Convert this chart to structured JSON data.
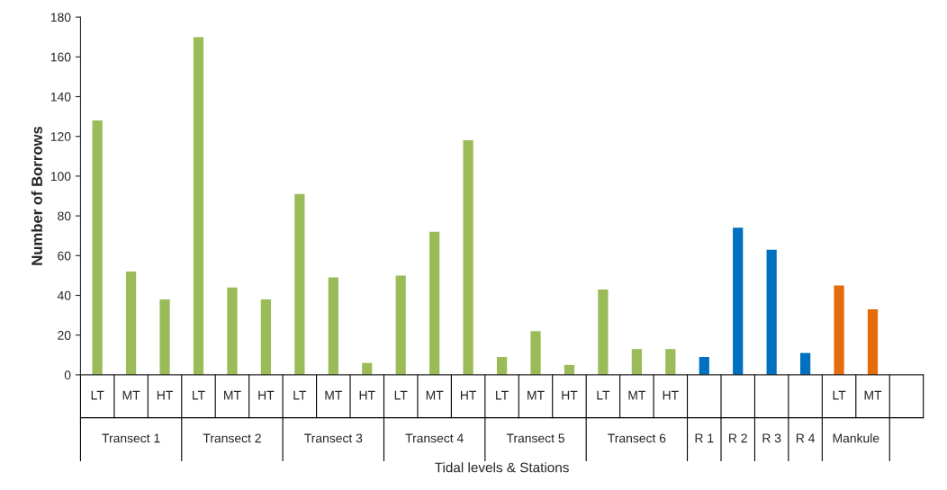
{
  "chart_data": {
    "type": "bar",
    "categories": [
      "LT",
      "MT",
      "HT",
      "LT",
      "MT",
      "HT",
      "LT",
      "MT",
      "HT",
      "LT",
      "MT",
      "HT",
      "LT",
      "MT",
      "HT",
      "LT",
      "MT",
      "HT",
      null,
      null,
      null,
      null,
      "LT",
      "MT",
      null
    ],
    "values": [
      128,
      52,
      38,
      170,
      44,
      38,
      91,
      49,
      6,
      50,
      72,
      118,
      9,
      22,
      5,
      43,
      13,
      13,
      9,
      74,
      63,
      11,
      45,
      33,
      null
    ],
    "colors": [
      "#9bbb59",
      "#9bbb59",
      "#9bbb59",
      "#9bbb59",
      "#9bbb59",
      "#9bbb59",
      "#9bbb59",
      "#9bbb59",
      "#9bbb59",
      "#9bbb59",
      "#9bbb59",
      "#9bbb59",
      "#9bbb59",
      "#9bbb59",
      "#9bbb59",
      "#9bbb59",
      "#9bbb59",
      "#9bbb59",
      "#0070c0",
      "#0070c0",
      "#0070c0",
      "#0070c0",
      "#e46c0a",
      "#e46c0a",
      "#9bbb59"
    ],
    "annotations": [
      "Transect 1",
      "Transect 2",
      "Transect 3",
      "Transect 4",
      "Transect 5",
      "Transect 6",
      "R 1",
      "R 2",
      "R 3",
      "R 4",
      "Mankule"
    ],
    "xlabel": "Tidal levels & Stations",
    "ylabel": "Number of Borrows",
    "ylim": [
      0,
      180
    ],
    "yticks": [
      0,
      20,
      40,
      60,
      80,
      100,
      120,
      140,
      160,
      180
    ],
    "grid": false,
    "legend": false
  }
}
